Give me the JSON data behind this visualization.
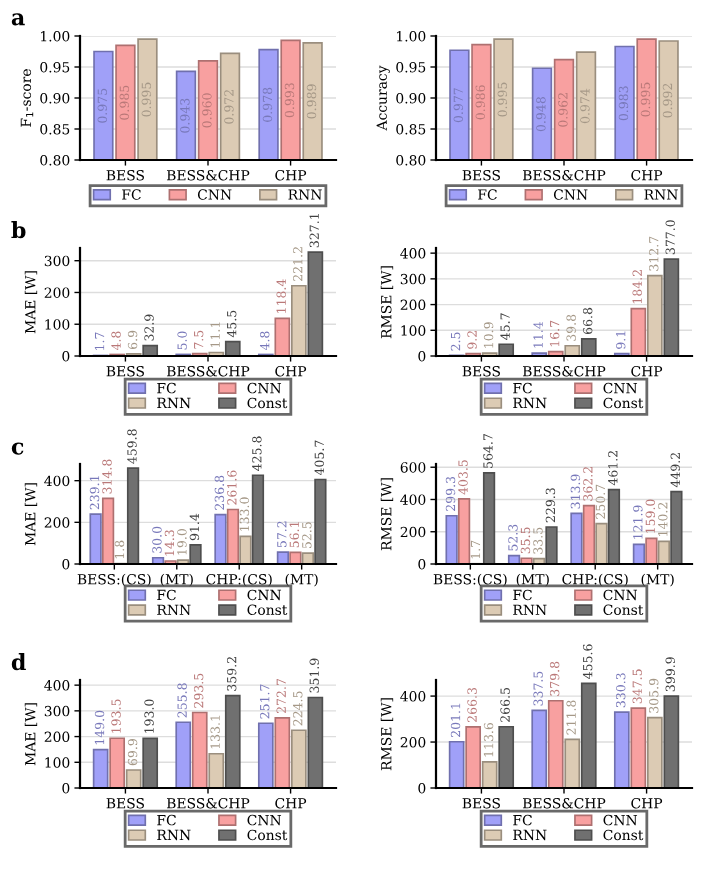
{
  "chart_data": [
    {
      "type": "bar",
      "title": "a",
      "ylabel": "F$_{1}$-score",
      "categories": [
        "BESS",
        "BESS&CHP",
        "CHP"
      ],
      "ylim": [
        0.8,
        1.0
      ],
      "yticks": [
        {
          "value": 0.8,
          "label": "0.80"
        },
        {
          "value": 0.85,
          "label": "0.85"
        },
        {
          "value": 0.9,
          "label": "0.90"
        },
        {
          "value": 0.95,
          "label": "0.95"
        },
        {
          "value": 1.0,
          "label": "1.00"
        }
      ],
      "grid": "y",
      "legend": "bottom",
      "series": [
        {
          "name": "FC",
          "color": "#a0a0f8",
          "values": [
            0.975,
            0.943,
            0.978
          ],
          "value_labels": [
            "0.975",
            "0.943",
            "0.978"
          ]
        },
        {
          "name": "CNN",
          "color": "#f8a0a0",
          "values": [
            0.985,
            0.96,
            0.993
          ],
          "value_labels": [
            "0.985",
            "0.960",
            "0.993"
          ]
        },
        {
          "name": "RNN",
          "color": "#dccbb4",
          "values": [
            0.995,
            0.972,
            0.989
          ],
          "value_labels": [
            "0.995",
            "0.972",
            "0.989"
          ]
        }
      ]
    },
    {
      "type": "bar",
      "ylabel": "Accuracy",
      "categories": [
        "BESS",
        "BESS&CHP",
        "CHP"
      ],
      "ylim": [
        0.8,
        1.0
      ],
      "yticks": [
        {
          "value": 0.8,
          "label": "0.80"
        },
        {
          "value": 0.85,
          "label": "0.85"
        },
        {
          "value": 0.9,
          "label": "0.90"
        },
        {
          "value": 0.95,
          "label": "0.95"
        },
        {
          "value": 1.0,
          "label": "1.00"
        }
      ],
      "grid": "y",
      "legend": "bottom",
      "series": [
        {
          "name": "FC",
          "color": "#a0a0f8",
          "values": [
            0.977,
            0.948,
            0.983
          ],
          "value_labels": [
            "0.977",
            "0.948",
            "0.983"
          ]
        },
        {
          "name": "CNN",
          "color": "#f8a0a0",
          "values": [
            0.986,
            0.962,
            0.995
          ],
          "value_labels": [
            "0.986",
            "0.962",
            "0.995"
          ]
        },
        {
          "name": "RNN",
          "color": "#dccbb4",
          "values": [
            0.995,
            0.974,
            0.992
          ],
          "value_labels": [
            "0.995",
            "0.974",
            "0.992"
          ]
        }
      ]
    },
    {
      "type": "bar",
      "title": "b",
      "ylabel": "MAE [W]",
      "categories": [
        "BESS",
        "BESS&CHP",
        "CHP"
      ],
      "ylim": [
        0,
        340
      ],
      "yticks": [
        0,
        100,
        200,
        300
      ],
      "grid": "y",
      "legend": "bottom",
      "series": [
        {
          "name": "FC",
          "color": "#a0a0f8",
          "values": [
            1.7,
            5.0,
            4.8
          ],
          "value_labels": [
            "1.7",
            "5.0",
            "4.8"
          ]
        },
        {
          "name": "CNN",
          "color": "#f8a0a0",
          "values": [
            4.8,
            7.5,
            118.4
          ],
          "value_labels": [
            "4.8",
            "7.5",
            "118.4"
          ]
        },
        {
          "name": "RNN",
          "color": "#dccbb4",
          "values": [
            6.9,
            11.1,
            221.2
          ],
          "value_labels": [
            "6.9",
            "11.1",
            "221.2"
          ]
        },
        {
          "name": "Const",
          "color": "#707070",
          "values": [
            32.9,
            45.5,
            327.1
          ],
          "value_labels": [
            "32.9",
            "45.5",
            "327.1"
          ]
        }
      ]
    },
    {
      "type": "bar",
      "ylabel": "RMSE [W]",
      "categories": [
        "BESS",
        "BESS&CHP",
        "CHP"
      ],
      "ylim": [
        0,
        420
      ],
      "yticks": [
        0,
        100,
        200,
        300,
        400
      ],
      "grid": "y",
      "legend": "bottom",
      "series": [
        {
          "name": "FC",
          "color": "#a0a0f8",
          "values": [
            2.5,
            11.4,
            9.1
          ],
          "value_labels": [
            "2.5",
            "11.4",
            "9.1"
          ]
        },
        {
          "name": "CNN",
          "color": "#f8a0a0",
          "values": [
            9.2,
            16.7,
            184.2
          ],
          "value_labels": [
            "9.2",
            "16.7",
            "184.2"
          ]
        },
        {
          "name": "RNN",
          "color": "#dccbb4",
          "values": [
            10.9,
            39.8,
            312.7
          ],
          "value_labels": [
            "10.9",
            "39.8",
            "312.7"
          ]
        },
        {
          "name": "Const",
          "color": "#707070",
          "values": [
            45.7,
            66.8,
            377.0
          ],
          "value_labels": [
            "45.7",
            "66.8",
            "377.0"
          ]
        }
      ]
    },
    {
      "type": "bar",
      "title": "c",
      "ylabel": "MAE [W]",
      "categories": [
        "BESS:(CS)",
        "(MT)",
        "CHP:(CS)",
        "(MT)"
      ],
      "ylim": [
        0,
        480
      ],
      "yticks": [
        0,
        200,
        400
      ],
      "grid": "y",
      "legend": "bottom",
      "series": [
        {
          "name": "FC",
          "color": "#a0a0f8",
          "values": [
            239.1,
            30.0,
            236.8,
            57.2
          ],
          "value_labels": [
            "239.1",
            "30.0",
            "236.8",
            "57.2"
          ]
        },
        {
          "name": "CNN",
          "color": "#f8a0a0",
          "values": [
            314.8,
            14.3,
            261.6,
            56.1
          ],
          "value_labels": [
            "314.8",
            "14.3",
            "261.6",
            "56.1"
          ]
        },
        {
          "name": "RNN",
          "color": "#dccbb4",
          "values": [
            1.8,
            19.0,
            133.0,
            52.5
          ],
          "value_labels": [
            "1.8",
            "19.0",
            "133.0",
            "52.5"
          ]
        },
        {
          "name": "Const",
          "color": "#707070",
          "values": [
            459.8,
            91.4,
            425.8,
            405.7
          ],
          "value_labels": [
            "459.8",
            "91.4",
            "425.8",
            "405.7"
          ]
        }
      ]
    },
    {
      "type": "bar",
      "ylabel": "RMSE [W]",
      "categories": [
        "BESS:(CS)",
        "(MT)",
        "CHP:(CS)",
        "(MT)"
      ],
      "ylim": [
        0,
        620
      ],
      "yticks": [
        0,
        200,
        400,
        600
      ],
      "grid": "y",
      "legend": "bottom",
      "series": [
        {
          "name": "FC",
          "color": "#a0a0f8",
          "values": [
            299.3,
            52.3,
            313.9,
            121.9
          ],
          "value_labels": [
            "299.3",
            "52.3",
            "313.9",
            "121.9"
          ]
        },
        {
          "name": "CNN",
          "color": "#f8a0a0",
          "values": [
            403.5,
            35.5,
            362.2,
            159.0
          ],
          "value_labels": [
            "403.5",
            "35.5",
            "362.2",
            "159.0"
          ]
        },
        {
          "name": "RNN",
          "color": "#dccbb4",
          "values": [
            1.7,
            33.5,
            250.7,
            140.2
          ],
          "value_labels": [
            "1.7",
            "33.5",
            "250.7",
            "140.2"
          ]
        },
        {
          "name": "Const",
          "color": "#707070",
          "values": [
            564.7,
            229.3,
            461.2,
            449.2
          ],
          "value_labels": [
            "564.7",
            "229.3",
            "461.2",
            "449.2"
          ]
        }
      ]
    },
    {
      "type": "bar",
      "title": "d",
      "ylabel": "MAE [W]",
      "categories": [
        "BESS",
        "BESS&CHP",
        "CHP"
      ],
      "ylim": [
        0,
        420
      ],
      "yticks": [
        0,
        100,
        200,
        300,
        400
      ],
      "grid": "y",
      "legend": "bottom",
      "series": [
        {
          "name": "FC",
          "color": "#a0a0f8",
          "values": [
            149.0,
            255.8,
            251.7
          ],
          "value_labels": [
            "149.0",
            "255.8",
            "251.7"
          ]
        },
        {
          "name": "CNN",
          "color": "#f8a0a0",
          "values": [
            193.5,
            293.5,
            272.7
          ],
          "value_labels": [
            "193.5",
            "293.5",
            "272.7"
          ]
        },
        {
          "name": "RNN",
          "color": "#dccbb4",
          "values": [
            69.9,
            133.1,
            224.5
          ],
          "value_labels": [
            "69.9",
            "133.1",
            "224.5"
          ]
        },
        {
          "name": "Const",
          "color": "#707070",
          "values": [
            193.0,
            359.2,
            351.9
          ],
          "value_labels": [
            "193.0",
            "359.2",
            "351.9"
          ]
        }
      ]
    },
    {
      "type": "bar",
      "ylabel": "RMSE [W]",
      "categories": [
        "BESS",
        "BESS&CHP",
        "CHP"
      ],
      "ylim": [
        0,
        470
      ],
      "yticks": [
        0,
        200,
        400
      ],
      "grid": "y",
      "legend": "bottom",
      "series": [
        {
          "name": "FC",
          "color": "#a0a0f8",
          "values": [
            201.1,
            337.5,
            330.3
          ],
          "value_labels": [
            "201.1",
            "337.5",
            "330.3"
          ]
        },
        {
          "name": "CNN",
          "color": "#f8a0a0",
          "values": [
            266.3,
            379.8,
            347.5
          ],
          "value_labels": [
            "266.3",
            "379.8",
            "347.5"
          ]
        },
        {
          "name": "RNN",
          "color": "#dccbb4",
          "values": [
            113.6,
            211.8,
            305.9
          ],
          "value_labels": [
            "113.6",
            "211.8",
            "305.9"
          ]
        },
        {
          "name": "Const",
          "color": "#707070",
          "values": [
            266.5,
            455.6,
            399.9
          ],
          "value_labels": [
            "266.5",
            "455.6",
            "399.9"
          ]
        }
      ]
    }
  ]
}
